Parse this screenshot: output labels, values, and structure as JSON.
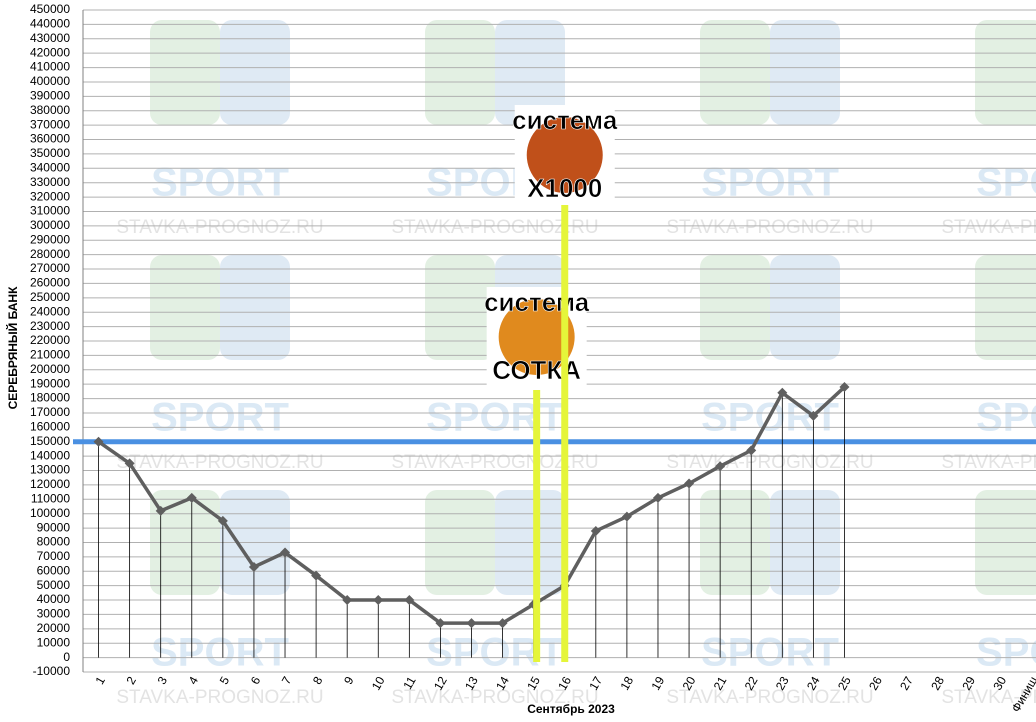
{
  "chart_data": {
    "type": "line",
    "y_label": "СЕРЕБРЯНЫЙ БАНК",
    "x_label": "Сентябрь 2023",
    "categories": [
      "1",
      "2",
      "3",
      "4",
      "5",
      "6",
      "7",
      "8",
      "9",
      "10",
      "11",
      "12",
      "13",
      "14",
      "15",
      "16",
      "17",
      "18",
      "19",
      "20",
      "21",
      "22",
      "23",
      "24",
      "25",
      "26",
      "27",
      "28",
      "29",
      "30",
      "Финиш"
    ],
    "values": [
      150000,
      135000,
      102000,
      111000,
      95000,
      63000,
      73000,
      57000,
      40000,
      40000,
      40000,
      24000,
      24000,
      24000,
      37000,
      50000,
      88000,
      98000,
      111000,
      121000,
      133000,
      144000,
      184000,
      168000,
      188000,
      null,
      null,
      null,
      null,
      null,
      null
    ],
    "color": "#5f5f5f",
    "ylim": [
      -10000,
      450000
    ],
    "yticks": [
      -10000,
      0,
      10000,
      20000,
      30000,
      40000,
      50000,
      60000,
      70000,
      80000,
      90000,
      100000,
      110000,
      120000,
      130000,
      140000,
      150000,
      160000,
      170000,
      180000,
      190000,
      200000,
      210000,
      220000,
      230000,
      240000,
      250000,
      260000,
      270000,
      280000,
      290000,
      300000,
      310000,
      320000,
      330000,
      340000,
      350000,
      360000,
      370000,
      380000,
      390000,
      400000,
      410000,
      420000,
      430000,
      440000,
      450000
    ],
    "grid": true,
    "reference_line": 150000,
    "reference_color": "#4a90e2",
    "annotations": [
      {
        "top": "система",
        "bottom": "СОТКА",
        "category": 14,
        "color": "#e5f53a"
      },
      {
        "top": "система",
        "bottom": "X1000",
        "category": 15,
        "color": "#e5f53a"
      }
    ],
    "watermark": {
      "logo": "SPORT",
      "site": "STAVKA-PROGNOZ.RU"
    }
  }
}
